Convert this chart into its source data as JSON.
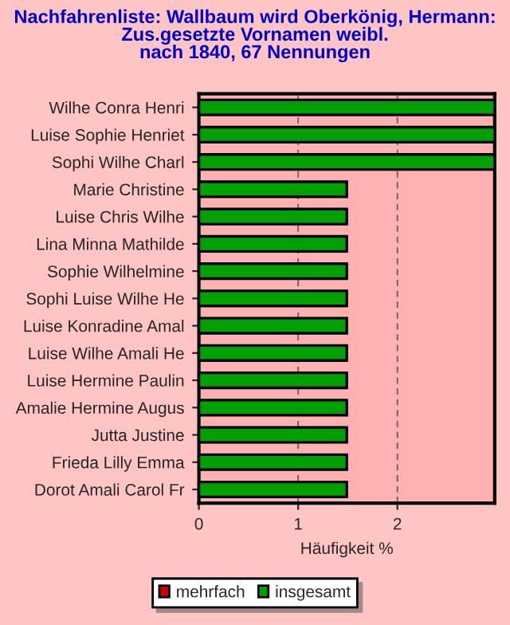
{
  "chart_data": {
    "type": "bar",
    "orientation": "horizontal",
    "title": "Nachfahrenliste: Wallbaum wird Oberkönig, Hermann:\nZus.gesetzte Vornamen weibl.\nnach 1840, 67 Nennungen",
    "xlabel": "Häufigkeit %",
    "categories": [
      "Wilhe Conra Henri",
      "Luise Sophie Henriet",
      "Sophi Wilhe Charl",
      "Marie Christine",
      "Luise Chris Wilhe",
      "Lina Minna Mathilde",
      "Sophie Wilhelmine",
      "Sophi Luise Wilhe He",
      "Luise Konradine Amal",
      "Luise Wilhe Amali He",
      "Luise Hermine Paulin",
      "Amalie Hermine Augus",
      "Jutta Justine",
      "Frieda Lilly Emma",
      "Dorot Amali Carol Fr"
    ],
    "series": [
      {
        "name": "mehrfach",
        "color": "#cc0000",
        "values": [
          null,
          null,
          null,
          null,
          null,
          null,
          null,
          null,
          null,
          null,
          null,
          null,
          null,
          null,
          null
        ]
      },
      {
        "name": "insgesamt",
        "color": "#00a000",
        "values": [
          2.98,
          2.98,
          2.98,
          1.49,
          1.49,
          1.49,
          1.49,
          1.49,
          1.49,
          1.49,
          1.49,
          1.49,
          1.49,
          1.49,
          1.49
        ]
      }
    ],
    "xlim": [
      0,
      2.98
    ],
    "xticks": [
      0,
      1,
      2
    ],
    "grid": "x",
    "legend": "bottom"
  }
}
